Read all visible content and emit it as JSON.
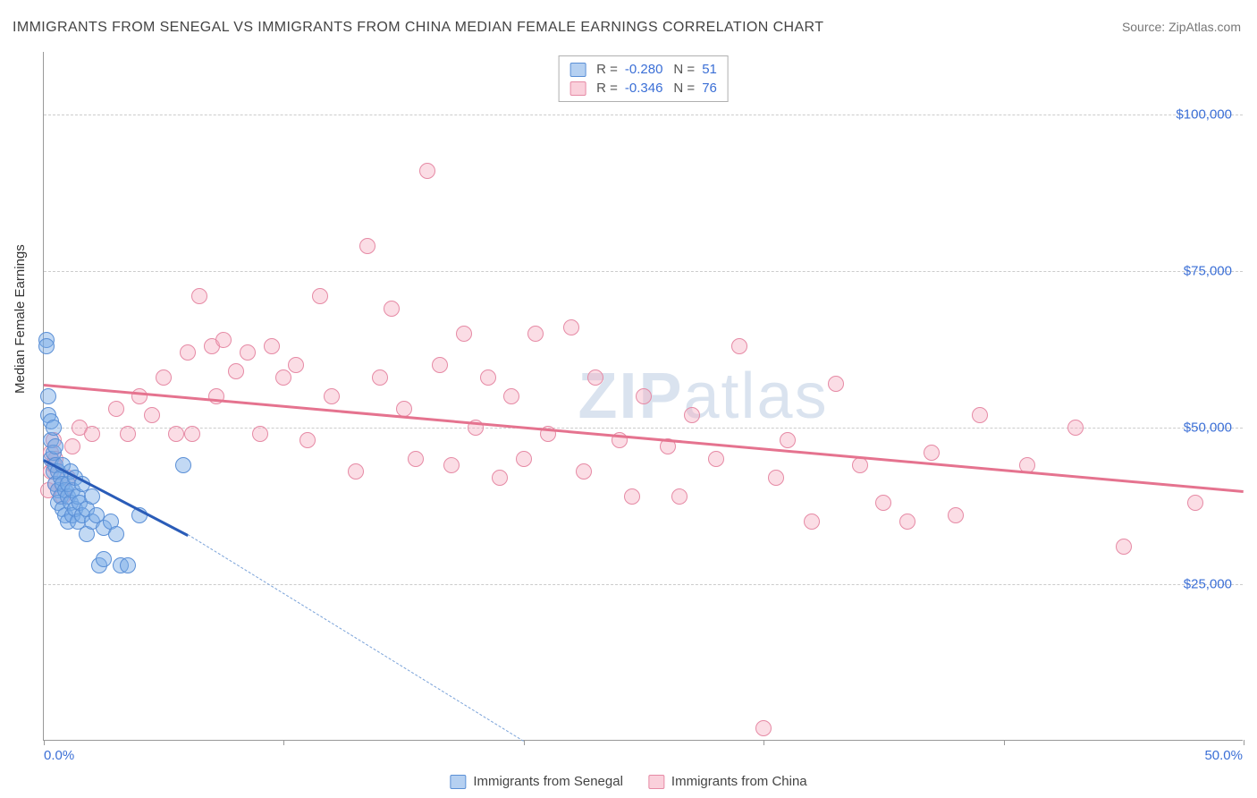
{
  "title": "IMMIGRANTS FROM SENEGAL VS IMMIGRANTS FROM CHINA MEDIAN FEMALE EARNINGS CORRELATION CHART",
  "source": "Source: ZipAtlas.com",
  "watermark": "ZIPatlas",
  "yaxis_title": "Median Female Earnings",
  "chart": {
    "type": "scatter",
    "background_color": "#ffffff",
    "grid_color": "#cccccc",
    "axis_color": "#999999",
    "label_color": "#3b6fd6",
    "title_color": "#444444",
    "title_fontsize": 16,
    "label_fontsize": 15,
    "marker_size": 18,
    "marker_opacity": 0.45,
    "xlim": [
      0,
      50
    ],
    "ylim": [
      0,
      110000
    ],
    "yticks": [
      25000,
      50000,
      75000,
      100000
    ],
    "ytick_labels": [
      "$25,000",
      "$50,000",
      "$75,000",
      "$100,000"
    ],
    "xticks": [
      0,
      10,
      20,
      30,
      40,
      50
    ],
    "xaxis_labels": {
      "min": "0.0%",
      "max": "50.0%"
    }
  },
  "series": {
    "senegal": {
      "label": "Immigrants from Senegal",
      "fill_color": "#78aae6",
      "stroke_color": "#5a8fd6",
      "trend_color": "#2a5cb8",
      "R": "-0.280",
      "N": "51",
      "trend": {
        "x1": 0,
        "y1": 45000,
        "x2": 6,
        "y2": 33000,
        "ext_x": 20,
        "ext_y": 0
      },
      "points": [
        [
          0.1,
          64000
        ],
        [
          0.1,
          63000
        ],
        [
          0.2,
          52000
        ],
        [
          0.2,
          55000
        ],
        [
          0.3,
          51000
        ],
        [
          0.3,
          48000
        ],
        [
          0.3,
          45000
        ],
        [
          0.4,
          43000
        ],
        [
          0.4,
          50000
        ],
        [
          0.4,
          46000
        ],
        [
          0.5,
          41000
        ],
        [
          0.5,
          44000
        ],
        [
          0.5,
          47000
        ],
        [
          0.6,
          40000
        ],
        [
          0.6,
          38000
        ],
        [
          0.6,
          43000
        ],
        [
          0.7,
          42000
        ],
        [
          0.7,
          39000
        ],
        [
          0.8,
          41000
        ],
        [
          0.8,
          37000
        ],
        [
          0.8,
          44000
        ],
        [
          0.9,
          40000
        ],
        [
          0.9,
          36000
        ],
        [
          1.0,
          39000
        ],
        [
          1.0,
          41000
        ],
        [
          1.0,
          35000
        ],
        [
          1.1,
          38000
        ],
        [
          1.1,
          43000
        ],
        [
          1.2,
          36000
        ],
        [
          1.2,
          40000
        ],
        [
          1.3,
          37000
        ],
        [
          1.3,
          42000
        ],
        [
          1.4,
          35000
        ],
        [
          1.4,
          39000
        ],
        [
          1.5,
          38000
        ],
        [
          1.6,
          36000
        ],
        [
          1.6,
          41000
        ],
        [
          1.8,
          37000
        ],
        [
          1.8,
          33000
        ],
        [
          2.0,
          35000
        ],
        [
          2.0,
          39000
        ],
        [
          2.2,
          36000
        ],
        [
          2.3,
          28000
        ],
        [
          2.5,
          34000
        ],
        [
          2.5,
          29000
        ],
        [
          2.8,
          35000
        ],
        [
          3.0,
          33000
        ],
        [
          3.2,
          28000
        ],
        [
          3.5,
          28000
        ],
        [
          4.0,
          36000
        ],
        [
          5.8,
          44000
        ]
      ]
    },
    "china": {
      "label": "Immigrants from China",
      "fill_color": "#f5aabe",
      "stroke_color": "#e68aa5",
      "trend_color": "#e5738f",
      "R": "-0.346",
      "N": "76",
      "trend": {
        "x1": 0,
        "y1": 57000,
        "x2": 50,
        "y2": 40000
      },
      "points": [
        [
          0.2,
          40000
        ],
        [
          0.3,
          43000
        ],
        [
          0.3,
          46000
        ],
        [
          0.4,
          48000
        ],
        [
          0.4,
          44000
        ],
        [
          0.5,
          45000
        ],
        [
          0.5,
          41000
        ],
        [
          0.8,
          39000
        ],
        [
          1.0,
          42000
        ],
        [
          1.2,
          47000
        ],
        [
          1.5,
          50000
        ],
        [
          2.0,
          49000
        ],
        [
          3.0,
          53000
        ],
        [
          3.5,
          49000
        ],
        [
          4.0,
          55000
        ],
        [
          4.5,
          52000
        ],
        [
          5.0,
          58000
        ],
        [
          5.5,
          49000
        ],
        [
          6.0,
          62000
        ],
        [
          6.2,
          49000
        ],
        [
          6.5,
          71000
        ],
        [
          7.0,
          63000
        ],
        [
          7.2,
          55000
        ],
        [
          7.5,
          64000
        ],
        [
          8.0,
          59000
        ],
        [
          8.5,
          62000
        ],
        [
          9.0,
          49000
        ],
        [
          9.5,
          63000
        ],
        [
          10.0,
          58000
        ],
        [
          10.5,
          60000
        ],
        [
          11.0,
          48000
        ],
        [
          11.5,
          71000
        ],
        [
          12.0,
          55000
        ],
        [
          13.0,
          43000
        ],
        [
          13.5,
          79000
        ],
        [
          14.0,
          58000
        ],
        [
          14.5,
          69000
        ],
        [
          15.0,
          53000
        ],
        [
          15.5,
          45000
        ],
        [
          16.0,
          91000
        ],
        [
          16.5,
          60000
        ],
        [
          17.0,
          44000
        ],
        [
          17.5,
          65000
        ],
        [
          18.0,
          50000
        ],
        [
          18.5,
          58000
        ],
        [
          19.0,
          42000
        ],
        [
          19.5,
          55000
        ],
        [
          20.0,
          45000
        ],
        [
          20.5,
          65000
        ],
        [
          21.0,
          49000
        ],
        [
          22.0,
          66000
        ],
        [
          22.5,
          43000
        ],
        [
          23.0,
          58000
        ],
        [
          24.0,
          48000
        ],
        [
          24.5,
          39000
        ],
        [
          25.0,
          55000
        ],
        [
          26.0,
          47000
        ],
        [
          26.5,
          39000
        ],
        [
          27.0,
          52000
        ],
        [
          28.0,
          45000
        ],
        [
          29.0,
          63000
        ],
        [
          30.0,
          2000
        ],
        [
          30.5,
          42000
        ],
        [
          31.0,
          48000
        ],
        [
          32.0,
          35000
        ],
        [
          33.0,
          57000
        ],
        [
          34.0,
          44000
        ],
        [
          35.0,
          38000
        ],
        [
          36.0,
          35000
        ],
        [
          37.0,
          46000
        ],
        [
          38.0,
          36000
        ],
        [
          39.0,
          52000
        ],
        [
          41.0,
          44000
        ],
        [
          43.0,
          50000
        ],
        [
          45.0,
          31000
        ],
        [
          48.0,
          38000
        ]
      ]
    }
  },
  "legend": {
    "R_label": "R =",
    "N_label": "N ="
  }
}
